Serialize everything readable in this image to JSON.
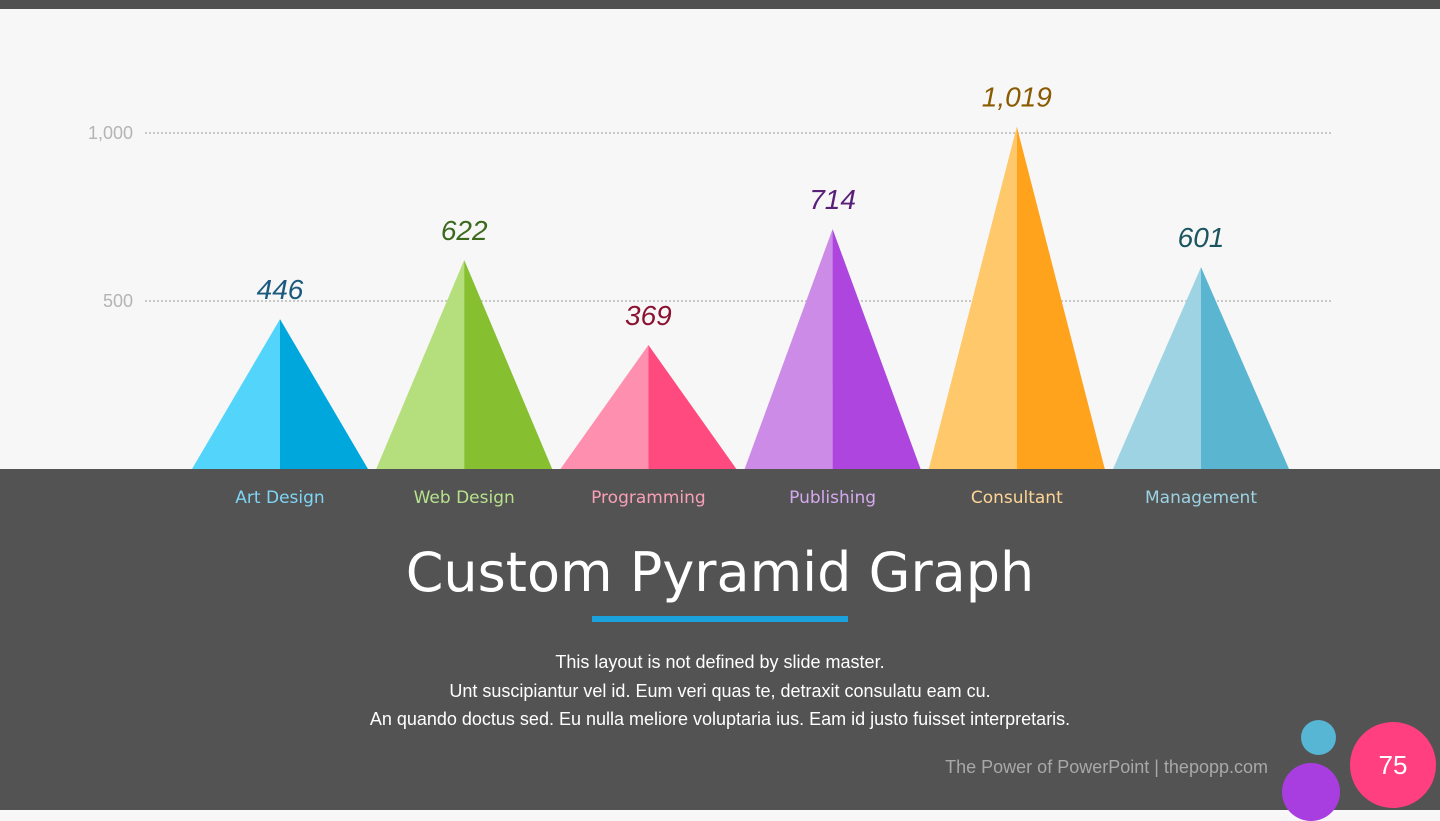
{
  "colors": {
    "background": "#f7f7f7",
    "panel": "#535353",
    "accent": "#1ba1dc",
    "gridline": "#c8c8c8"
  },
  "slide": {
    "title": "Custom Pyramid Graph",
    "body_lines": [
      "This layout is not defined by slide master.",
      "Unt suscipiantur vel id. Eum veri quas te, detraxit consulatu eam cu.",
      "An quando doctus sed. Eu nulla meliore voluptaria ius. Eam id justo fuisset interpretaris."
    ],
    "footer": "The Power of PowerPoint | thepopp.com",
    "page_number": "75"
  },
  "chart_data": {
    "type": "bar",
    "mark": "pyramid",
    "categories": [
      "Art Design",
      "Web Design",
      "Programming",
      "Publishing",
      "Consultant",
      "Management"
    ],
    "values": [
      446,
      622,
      369,
      714,
      1019,
      601
    ],
    "value_labels": [
      "446",
      "622",
      "369",
      "714",
      "1,019",
      "601"
    ],
    "ylim": [
      0,
      1000
    ],
    "yticks": [
      500,
      1000
    ],
    "ytick_labels": [
      "500",
      "1,000"
    ],
    "grid": true,
    "gridline_style": "dotted",
    "title": "",
    "xlabel": "",
    "ylabel": "",
    "colors": [
      {
        "light": "#52d4fb",
        "dark": "#00a7dd",
        "label": "#1a5a7e",
        "category": "#7fd5f5"
      },
      {
        "light": "#b5df7c",
        "dark": "#86c031",
        "label": "#3b6a1f",
        "category": "#b7e28c"
      },
      {
        "light": "#ff8fae",
        "dark": "#ff4a7f",
        "label": "#8b1232",
        "category": "#f8a0b8"
      },
      {
        "light": "#cc8be6",
        "dark": "#ad45de",
        "label": "#5a2078",
        "category": "#d5a9ef"
      },
      {
        "light": "#ffc86b",
        "dark": "#ffa31c",
        "label": "#8a5a00",
        "category": "#ffd596"
      },
      {
        "light": "#9dd3e3",
        "dark": "#5ab5d1",
        "label": "#1a5560",
        "category": "#9cd2e2"
      }
    ]
  }
}
